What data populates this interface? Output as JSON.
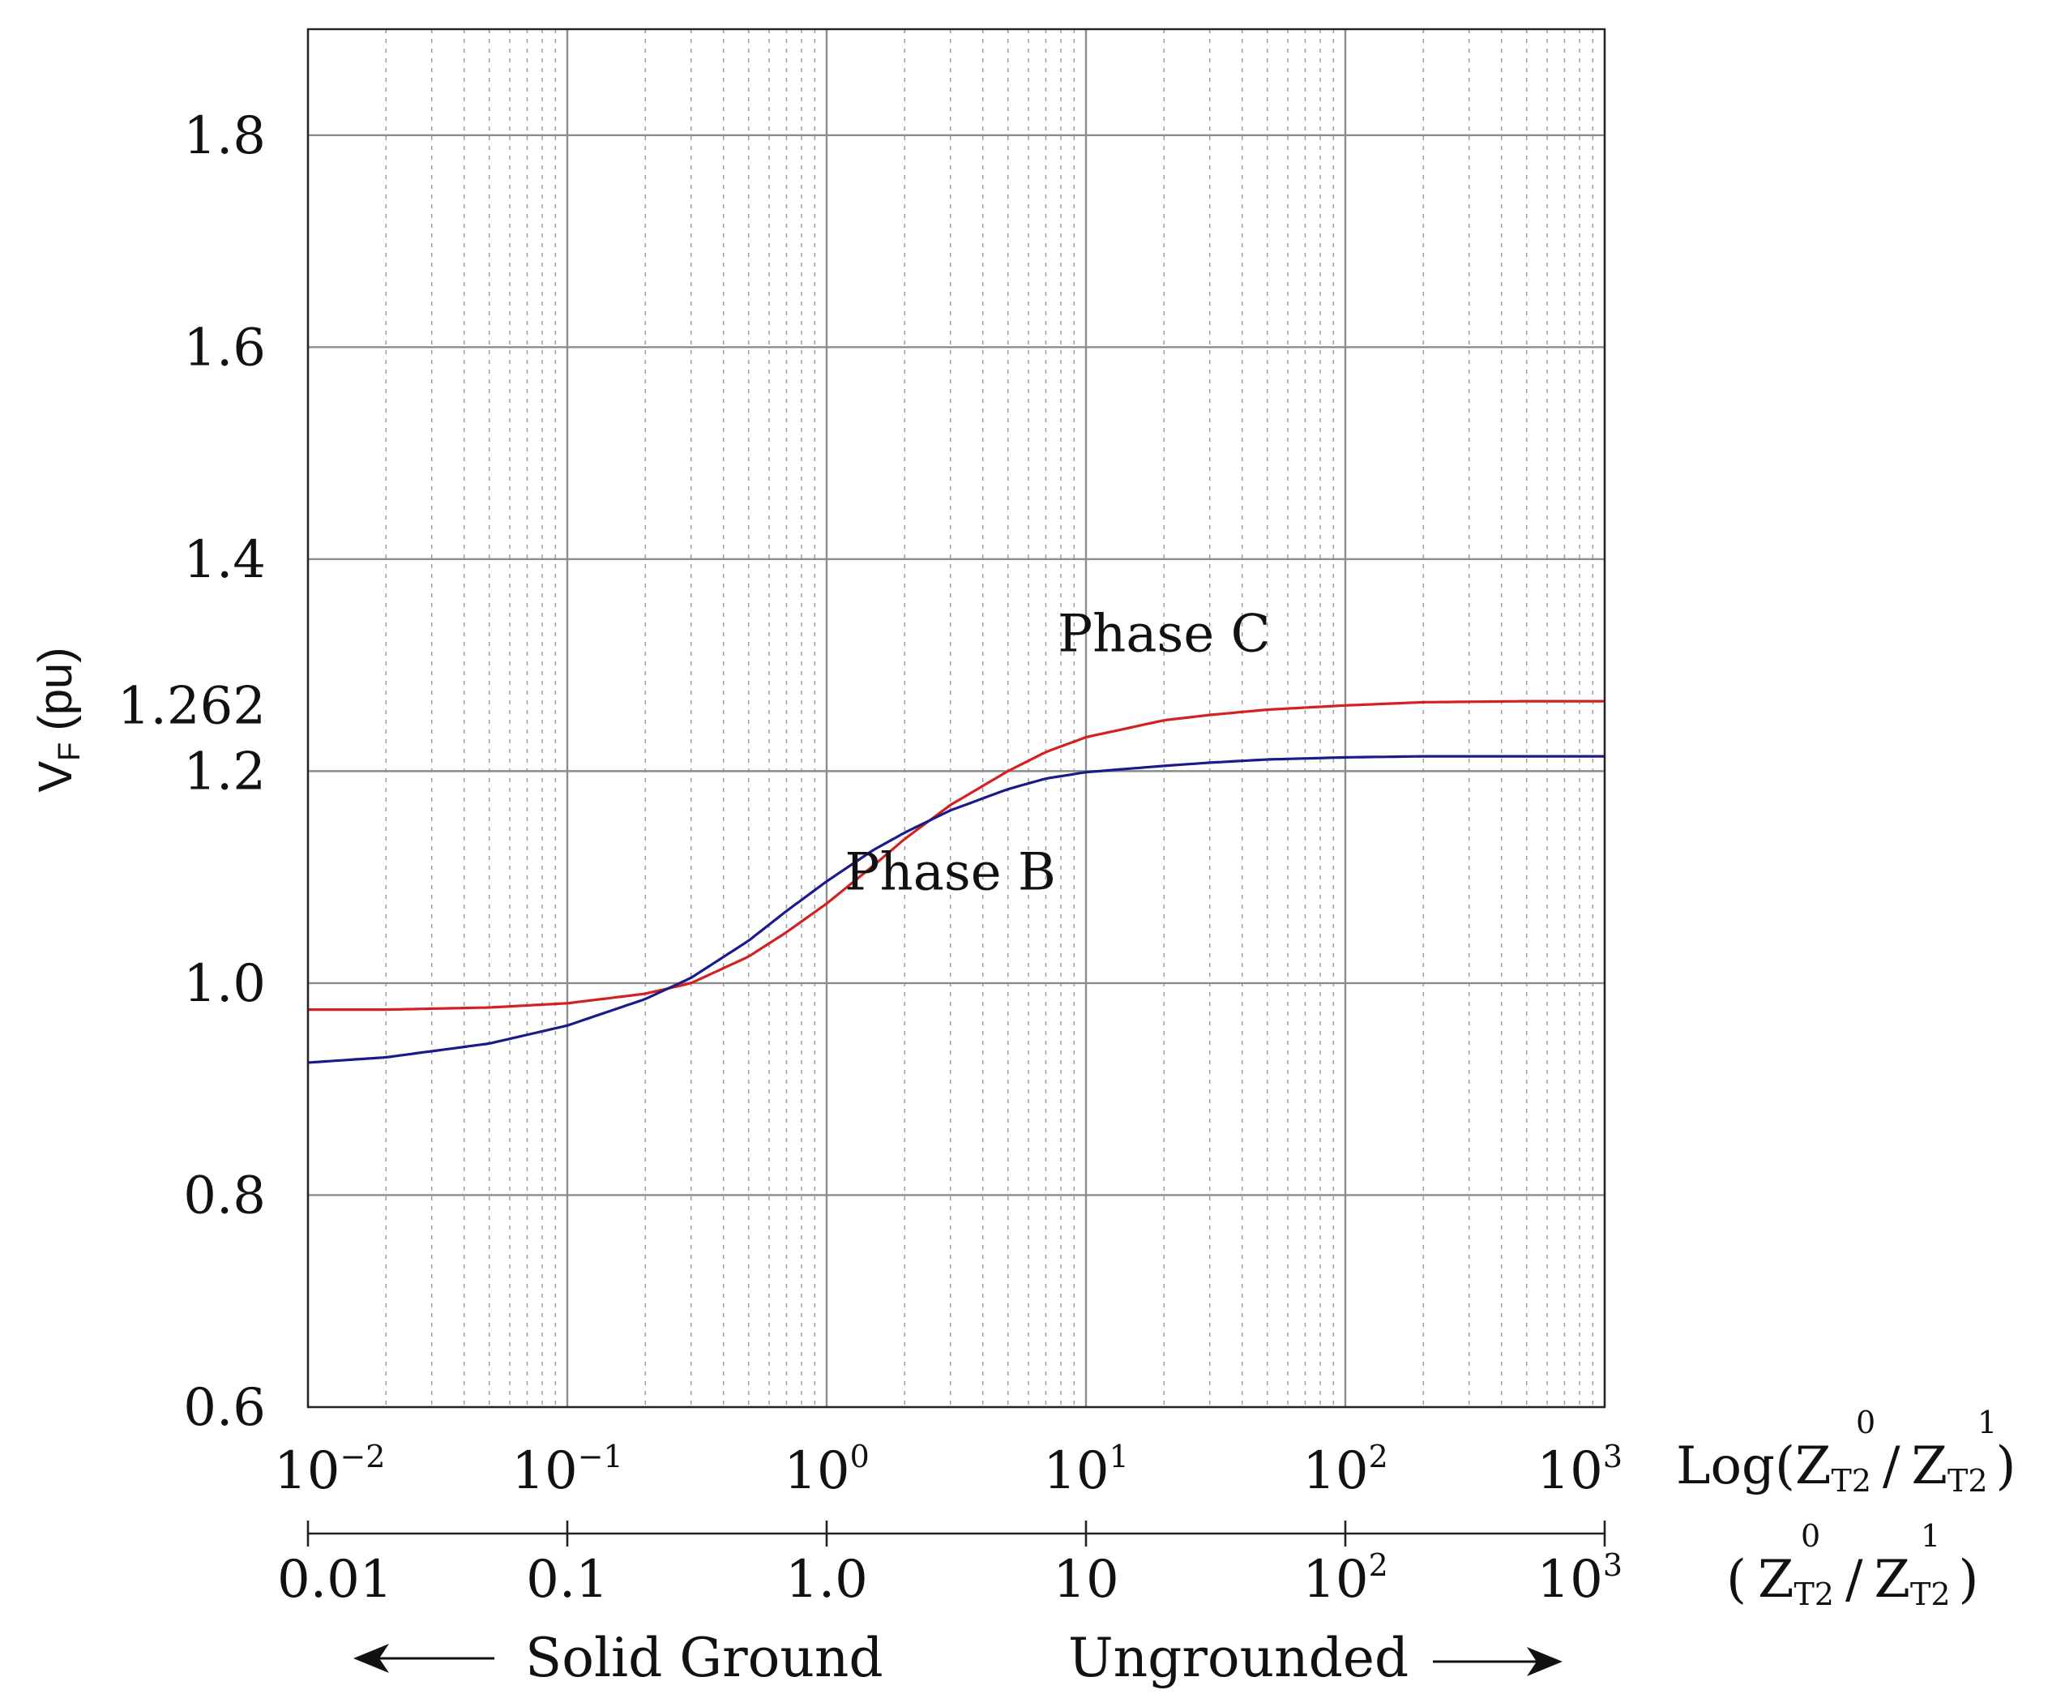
{
  "chart_data": {
    "type": "line",
    "x_scale": "log",
    "xlim": [
      0.01,
      1000
    ],
    "ylim": [
      0.6,
      1.9
    ],
    "grid": true,
    "ylabel": {
      "main": "V",
      "sub": "F",
      "unit": "(pu)"
    },
    "y_ticks": [
      {
        "value": 0.6,
        "label": "0.6"
      },
      {
        "value": 0.8,
        "label": "0.8"
      },
      {
        "value": 1.0,
        "label": "1.0"
      },
      {
        "value": 1.2,
        "label": "1.2"
      },
      {
        "value": 1.4,
        "label": "1.4"
      },
      {
        "value": 1.6,
        "label": "1.6"
      },
      {
        "value": 1.8,
        "label": "1.8"
      }
    ],
    "y_annotation": {
      "value": 1.262,
      "label": "1.262"
    },
    "x_ticks_log": [
      {
        "value": 0.01,
        "base": "10",
        "exp": "−2"
      },
      {
        "value": 0.1,
        "base": "10",
        "exp": "−1"
      },
      {
        "value": 1,
        "base": "10",
        "exp": "0"
      },
      {
        "value": 10,
        "base": "10",
        "exp": "1"
      },
      {
        "value": 100,
        "base": "10",
        "exp": "2"
      },
      {
        "value": 1000,
        "base": "10",
        "exp": "3"
      }
    ],
    "x_ticks_linear": [
      {
        "value": 0.01,
        "label": "0.01",
        "exp": ""
      },
      {
        "value": 0.1,
        "label": "0.1",
        "exp": ""
      },
      {
        "value": 1,
        "label": "1.0",
        "exp": ""
      },
      {
        "value": 10,
        "label": "10",
        "exp": ""
      },
      {
        "value": 100,
        "label": "10",
        "exp": "2"
      },
      {
        "value": 1000,
        "label": "10",
        "exp": "3"
      }
    ],
    "xlabel_log": {
      "prefix": "Log(",
      "z1": "Z",
      "sub1": "T2",
      "sup1": "0",
      "slash": "/",
      "z2": "Z",
      "sub2": "T2",
      "sup2": "1",
      "suffix": ")"
    },
    "xlabel_ratio": {
      "prefix": "(",
      "z1": "Z",
      "sub1": "T2",
      "sup1": "0",
      "slash": "/",
      "z2": "Z",
      "sub2": "T2",
      "sup2": "1",
      "suffix": ")"
    },
    "captions": {
      "left": "Solid Ground",
      "right": "Ungrounded"
    },
    "series": [
      {
        "name": "Phase C",
        "color": "#d42020",
        "x": [
          0.01,
          0.02,
          0.05,
          0.1,
          0.2,
          0.3,
          0.5,
          0.7,
          1,
          1.5,
          2,
          3,
          5,
          7,
          10,
          20,
          30,
          50,
          100,
          200,
          500,
          1000
        ],
        "y": [
          0.975,
          0.975,
          0.977,
          0.981,
          0.99,
          1.0,
          1.025,
          1.048,
          1.075,
          1.11,
          1.136,
          1.168,
          1.2,
          1.218,
          1.232,
          1.248,
          1.253,
          1.258,
          1.262,
          1.265,
          1.266,
          1.266
        ]
      },
      {
        "name": "Phase B",
        "color": "#1a1a8c",
        "x": [
          0.01,
          0.02,
          0.05,
          0.1,
          0.2,
          0.3,
          0.5,
          0.7,
          1,
          1.5,
          2,
          3,
          5,
          7,
          10,
          20,
          30,
          50,
          100,
          200,
          500,
          1000
        ],
        "y": [
          0.925,
          0.93,
          0.943,
          0.96,
          0.985,
          1.005,
          1.04,
          1.068,
          1.096,
          1.125,
          1.142,
          1.163,
          1.183,
          1.193,
          1.199,
          1.205,
          1.208,
          1.211,
          1.213,
          1.214,
          1.214,
          1.214
        ]
      }
    ],
    "series_labels": [
      {
        "name": "Phase C",
        "x": 20,
        "y": 1.33
      },
      {
        "name": "Phase B",
        "x": 3,
        "y": 1.105
      }
    ]
  }
}
